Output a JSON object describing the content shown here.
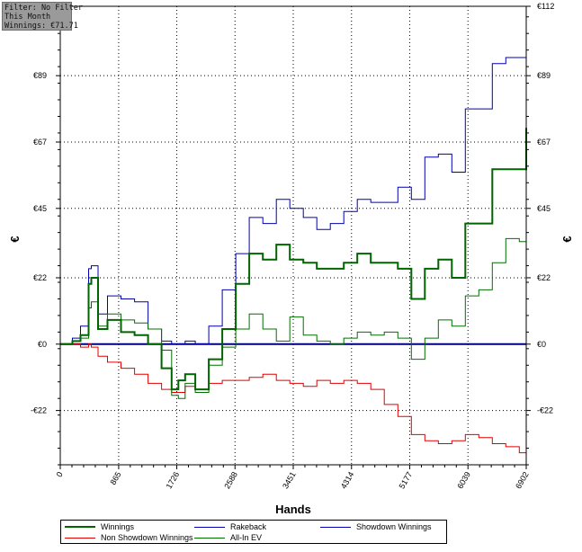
{
  "filter_box": {
    "line1": "Filter: No Filter",
    "line2": "This Month",
    "line3": "Winnings: €71.71"
  },
  "chart_data": {
    "type": "line",
    "xlabel": "Hands",
    "ylabel": "€",
    "xlim": [
      0,
      6902
    ],
    "ylim": [
      -40,
      112
    ],
    "x_ticks": [
      0,
      865,
      1726,
      2588,
      3451,
      4314,
      5177,
      6039,
      6902
    ],
    "y_ticks": [
      {
        "value": -22,
        "label": "-€22"
      },
      {
        "value": 0,
        "label": "€0"
      },
      {
        "value": 22,
        "label": "€22"
      },
      {
        "value": 45,
        "label": "€45"
      },
      {
        "value": 67,
        "label": "€67"
      },
      {
        "value": 89,
        "label": "€89"
      },
      {
        "value": 112,
        "label": "€112"
      }
    ],
    "grid": true,
    "legend_position": "bottom",
    "series": [
      {
        "name": "Winnings",
        "color": "#006400",
        "width": 2,
        "x": [
          0,
          180,
          300,
          420,
          460,
          560,
          700,
          900,
          1100,
          1300,
          1500,
          1650,
          1750,
          1850,
          2000,
          2200,
          2400,
          2600,
          2800,
          3000,
          3200,
          3400,
          3600,
          3800,
          4000,
          4200,
          4400,
          4600,
          4800,
          5000,
          5200,
          5400,
          5600,
          5800,
          6000,
          6200,
          6400,
          6600,
          6800,
          6902
        ],
        "y": [
          0,
          1,
          3,
          20,
          22,
          5,
          8,
          4,
          3,
          0,
          -8,
          -15,
          -12,
          -10,
          -15,
          -5,
          5,
          20,
          30,
          28,
          33,
          28,
          27,
          25,
          25,
          27,
          30,
          27,
          27,
          25,
          15,
          25,
          28,
          22,
          40,
          40,
          58,
          58,
          58,
          71.71
        ]
      },
      {
        "name": "Rakeback",
        "color": "#0000b0",
        "width": 1,
        "x": [
          0,
          180,
          300,
          420,
          460,
          560,
          700,
          900,
          1100,
          1300,
          1500,
          1650,
          1750,
          1850,
          2000,
          2200,
          2400,
          2600,
          2800,
          3000,
          3200,
          3400,
          3600,
          3800,
          4000,
          4200,
          4400,
          4600,
          4800,
          5000,
          5200,
          5400,
          5600,
          5800,
          6000,
          6200,
          6400,
          6600,
          6800,
          6902
        ],
        "y": [
          0,
          2,
          6,
          25,
          26,
          10,
          16,
          15,
          14,
          5,
          1,
          0,
          0,
          1,
          0,
          6,
          18,
          30,
          42,
          40,
          48,
          45,
          42,
          38,
          40,
          44,
          48,
          47,
          47,
          52,
          48,
          62,
          63,
          57,
          78,
          78,
          93,
          95,
          95,
          112
        ]
      },
      {
        "name": "Non Showdown Winnings",
        "color": "#e00000",
        "width": 1,
        "x": [
          0,
          180,
          300,
          420,
          460,
          560,
          700,
          900,
          1100,
          1300,
          1500,
          1650,
          1750,
          1850,
          2000,
          2200,
          2400,
          2600,
          2800,
          3000,
          3200,
          3400,
          3600,
          3800,
          4000,
          4200,
          4400,
          4600,
          4800,
          5000,
          5200,
          5400,
          5600,
          5800,
          6000,
          6200,
          6400,
          6600,
          6800,
          6902
        ],
        "y": [
          0,
          0,
          -1,
          0,
          -1,
          -4,
          -6,
          -8,
          -10,
          -13,
          -15,
          -16,
          -16,
          -14,
          -15,
          -13,
          -12,
          -12,
          -11,
          -10,
          -12,
          -13,
          -14,
          -12,
          -13,
          -12,
          -13,
          -15,
          -20,
          -24,
          -30,
          -32,
          -33,
          -32,
          -30,
          -31,
          -33,
          -34,
          -36,
          -37
        ]
      },
      {
        "name": "All-In EV",
        "color": "#007000",
        "width": 1,
        "x": [
          0,
          180,
          300,
          420,
          460,
          560,
          700,
          900,
          1100,
          1300,
          1500,
          1650,
          1750,
          1850,
          2000,
          2200,
          2400,
          2600,
          2800,
          3000,
          3200,
          3400,
          3600,
          3800,
          4000,
          4200,
          4400,
          4600,
          4800,
          5000,
          5200,
          5400,
          5600,
          5800,
          6000,
          6200,
          6400,
          6600,
          6800,
          6902
        ],
        "y": [
          0,
          1,
          2,
          12,
          14,
          6,
          10,
          8,
          7,
          5,
          -2,
          -17,
          -18,
          -13,
          -16,
          -7,
          -1,
          5,
          10,
          5,
          1,
          9,
          3,
          1,
          0,
          2,
          4,
          3,
          4,
          2,
          -5,
          2,
          8,
          6,
          16,
          18,
          27,
          35,
          34,
          42
        ]
      },
      {
        "name": "Showdown Winnings",
        "color": "#0000b0",
        "width": 1,
        "x": [],
        "y": []
      }
    ]
  }
}
